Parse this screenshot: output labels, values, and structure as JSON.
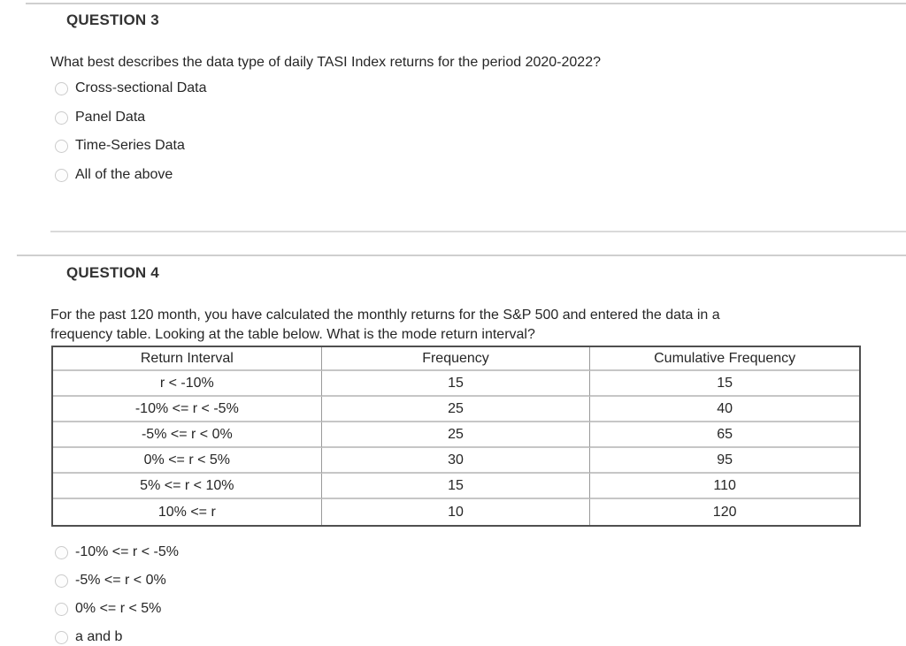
{
  "questions": [
    {
      "heading": "QUESTION 3",
      "text": "What best describes the data type of daily TASI Index returns for the period 2020-2022?",
      "options": [
        "Cross-sectional Data",
        "Panel Data",
        "Time-Series Data",
        "All of the above"
      ],
      "selected_option": null
    },
    {
      "heading": "QUESTION 4",
      "text_lines": [
        "For the past 120 month, you have calculated the monthly returns for the S&P 500 and entered the data in a",
        "frequency table. Looking at the table below. What is the mode return interval?"
      ],
      "table": {
        "headers": [
          "Return Interval",
          "Frequency",
          "Cumulative Frequency"
        ],
        "rows": [
          [
            "r < -10%",
            "15",
            "15"
          ],
          [
            "-10% <= r < -5%",
            "25",
            "40"
          ],
          [
            "-5% <= r < 0%",
            "25",
            "65"
          ],
          [
            "0% <= r < 5%",
            "30",
            "95"
          ],
          [
            "5% <= r < 10%",
            "15",
            "110"
          ],
          [
            "10% <= r",
            "10",
            "120"
          ]
        ]
      },
      "options": [
        "-10% <= r < -5%",
        "-5% <= r < 0%",
        "0% <= r < 5%",
        "a and b"
      ],
      "selected_option": null
    }
  ],
  "colors": {
    "text": "#262626",
    "heading": "#333333",
    "table_outer_border": "#4f4f4f",
    "table_column_border": "#9a9a9a",
    "table_row_border": "#c6c6c6",
    "divider": "#cfcfcf",
    "radio_border": "#cbcbcb"
  }
}
